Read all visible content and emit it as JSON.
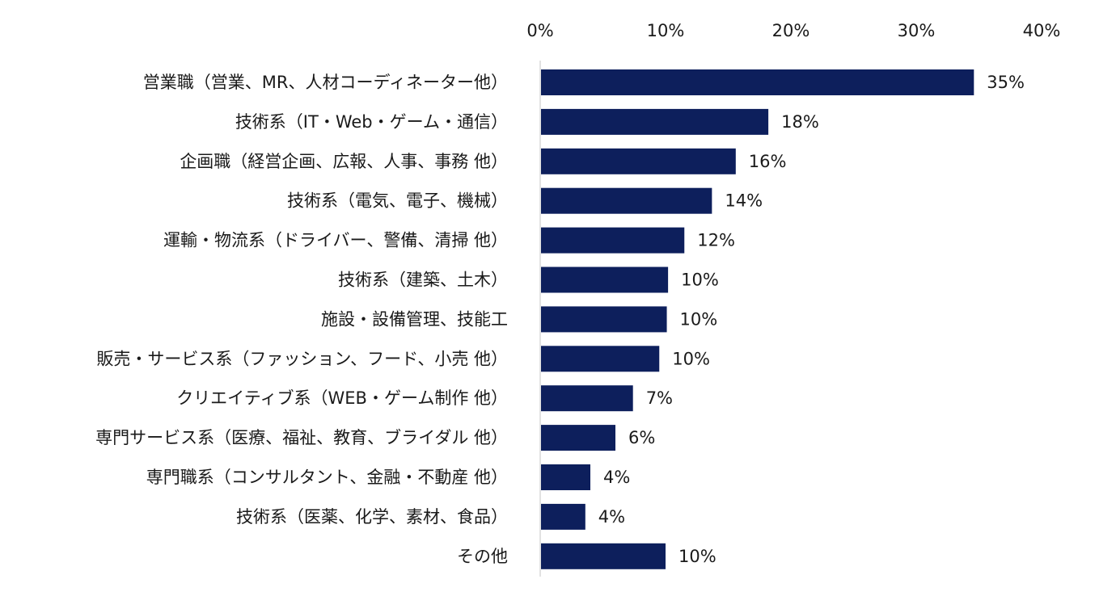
{
  "chart_data": {
    "type": "bar",
    "orientation": "horizontal",
    "title": "",
    "xlabel": "",
    "ylabel": "",
    "xlim": [
      0,
      40
    ],
    "x_ticks": [
      0,
      10,
      20,
      30,
      40
    ],
    "x_tick_labels": [
      "0%",
      "10%",
      "20%",
      "30%",
      "40%"
    ],
    "x_axis_position": "top",
    "grid": false,
    "legend": "none",
    "bar_color": "#0d1f5c",
    "categories": [
      "営業職（営業、MR、人材コーディネーター他）",
      "技術系（IT・Web・ゲーム・通信）",
      "企画職（経営企画、広報、人事、事務 他）",
      "技術系（電気、電子、機械）",
      "運輸・物流系（ドライバー、警備、清掃 他）",
      "技術系（建築、土木）",
      "施設・設備管理、技能工",
      "販売・サービス系（ファッション、フード、小売 他）",
      "クリエイティブ系（WEB・ゲーム制作 他）",
      "専門サービス系（医療、福祉、教育、ブライダル 他）",
      "専門職系（コンサルタント、金融・不動産 他）",
      "技術系（医薬、化学、素材、食品）",
      "その他"
    ],
    "values": [
      34.6,
      18.2,
      15.6,
      13.7,
      11.5,
      10.2,
      10.1,
      9.5,
      7.4,
      6.0,
      4.0,
      3.6,
      10.0
    ],
    "data_labels": [
      "35%",
      "18%",
      "16%",
      "14%",
      "12%",
      "10%",
      "10%",
      "10%",
      "7%",
      "6%",
      "4%",
      "4%",
      "10%"
    ]
  }
}
